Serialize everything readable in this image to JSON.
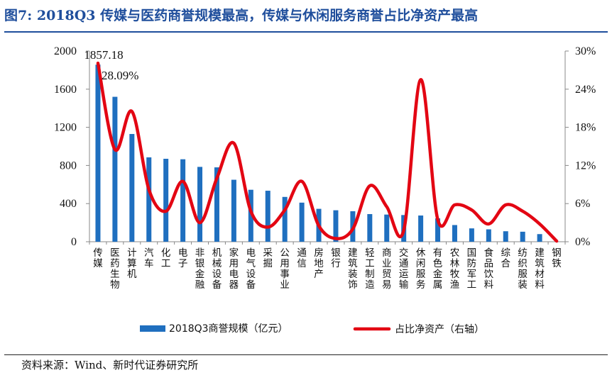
{
  "header": {
    "title": "图7:   2018Q3 传媒与医药商誉规模最高，传媒与休闲服务商誉占比净资产最高"
  },
  "footer": {
    "source": "资料来源：Wind、新时代证券研究所"
  },
  "colors": {
    "bar": "#1f6fbf",
    "line": "#e30613",
    "title": "#1f4e9c"
  },
  "chart_data": {
    "type": "bar",
    "categories": [
      "传媒",
      "医药生物",
      "计算机",
      "汽车",
      "化工",
      "电子",
      "非银金融",
      "机械设备",
      "家用电器",
      "电气设备",
      "采掘",
      "公用事业",
      "通信",
      "房地产",
      "银行",
      "建筑装饰",
      "轻工制造",
      "商业贸易",
      "交通运输",
      "休闲服务",
      "有色金属",
      "农林牧渔",
      "国防军工",
      "食品饮料",
      "综合",
      "纺织服装",
      "建筑材料",
      "钢铁"
    ],
    "series": [
      {
        "name": "2018Q3商誉规模（亿元）",
        "axis": "left",
        "type": "bar",
        "values": [
          1857.18,
          1520,
          1130,
          885,
          870,
          865,
          785,
          780,
          650,
          545,
          535,
          470,
          410,
          345,
          330,
          320,
          290,
          285,
          280,
          275,
          245,
          175,
          140,
          130,
          110,
          105,
          80,
          0
        ]
      },
      {
        "name": "占比净资产（右轴）",
        "axis": "right",
        "type": "line",
        "unit": "%",
        "values": [
          28.09,
          14.5,
          20.5,
          8.2,
          4.8,
          9.5,
          3.0,
          10.0,
          15.5,
          4.8,
          2.3,
          5.0,
          9.5,
          2.5,
          0.5,
          2.0,
          8.8,
          5.5,
          1.8,
          25.5,
          3.5,
          5.8,
          5.0,
          2.8,
          5.8,
          4.8,
          2.8,
          0.1
        ]
      }
    ],
    "y_left": {
      "min": 0,
      "max": 2000,
      "ticks": [
        "0",
        "400",
        "800",
        "1200",
        "1600",
        "2000"
      ],
      "tick_values": [
        0,
        400,
        800,
        1200,
        1600,
        2000
      ]
    },
    "y_right": {
      "min": 0,
      "max": 30,
      "ticks": [
        "0%",
        "6%",
        "12%",
        "18%",
        "24%",
        "30%"
      ],
      "tick_values": [
        0,
        6,
        12,
        18,
        24,
        30
      ]
    },
    "data_labels": [
      {
        "series": 0,
        "index": 0,
        "text": "1857.18"
      },
      {
        "series": 1,
        "index": 0,
        "text": "28.09%"
      }
    ],
    "legend_position": "bottom",
    "grid": false
  }
}
